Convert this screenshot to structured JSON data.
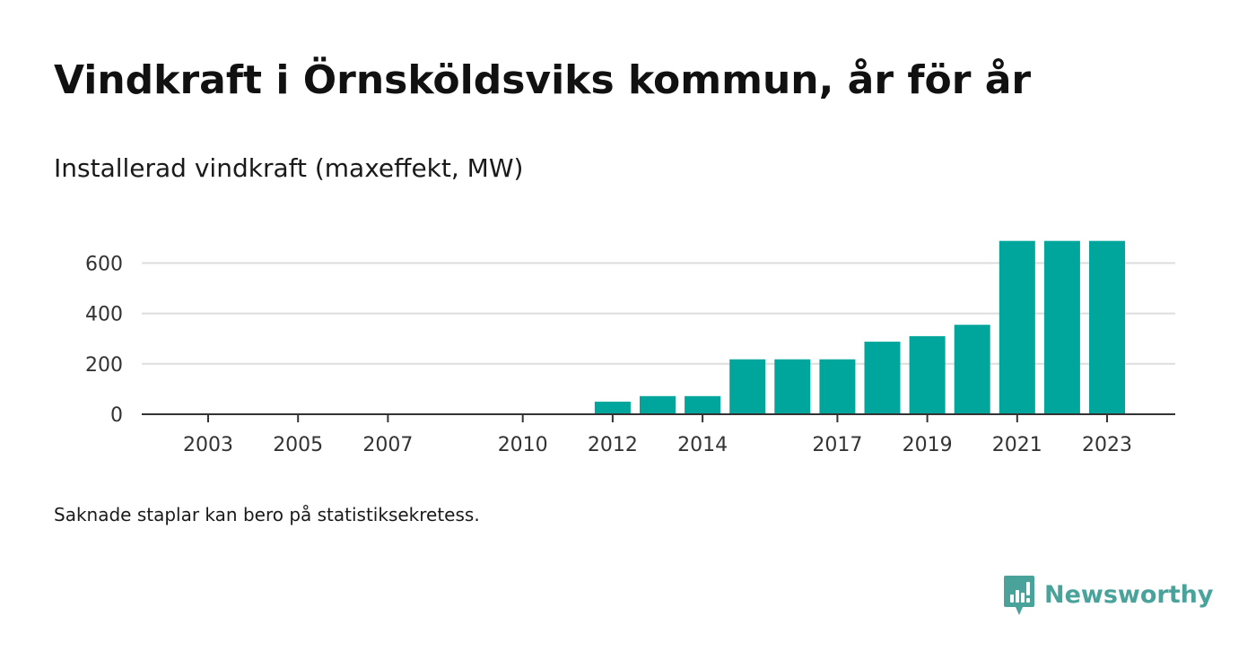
{
  "title": "Vindkraft i Örnsköldsviks kommun, år för år",
  "subtitle": "Installerad vindkraft (maxeffekt, MW)",
  "footnote": "Saknade staplar kan bero på statistiksekretess.",
  "brand": {
    "name": "Newsworthy",
    "icon": "newsworthy-logo-icon",
    "color": "#4aa39b"
  },
  "chart_data": {
    "type": "bar",
    "title": "Vindkraft i Örnsköldsviks kommun, år för år",
    "subtitle": "Installerad vindkraft (maxeffekt, MW)",
    "xlabel": "",
    "ylabel": "",
    "bar_color": "#00a59b",
    "categories": [
      2003,
      2004,
      2005,
      2006,
      2007,
      2008,
      2009,
      2010,
      2011,
      2012,
      2013,
      2014,
      2015,
      2016,
      2017,
      2018,
      2019,
      2020,
      2021,
      2022,
      2023
    ],
    "values": [
      0,
      0,
      0,
      0,
      0,
      0,
      0,
      0,
      0,
      50,
      72,
      72,
      218,
      218,
      218,
      288,
      310,
      355,
      688,
      688,
      688
    ],
    "x_tick_labels": [
      "2003",
      "2005",
      "2007",
      "2010",
      "2012",
      "2014",
      "2017",
      "2019",
      "2021",
      "2023"
    ],
    "y_ticks": [
      0,
      200,
      400,
      600
    ],
    "y_tick_labels": [
      "0",
      "200",
      "400",
      "600"
    ],
    "ylim": [
      0,
      700
    ],
    "grid": true,
    "legend": "none"
  }
}
